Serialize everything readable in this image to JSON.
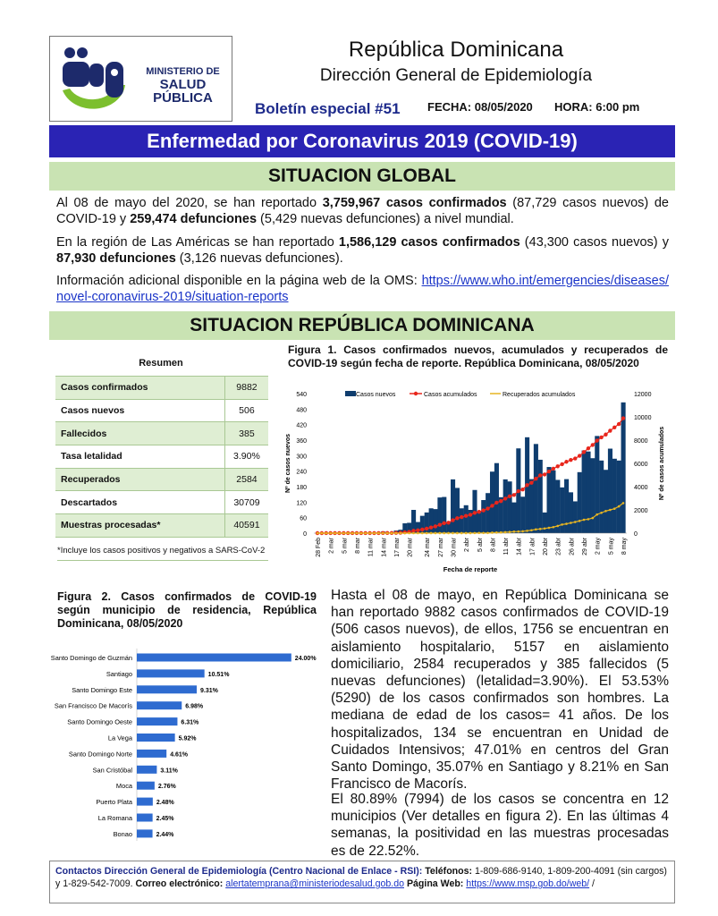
{
  "header": {
    "logo_line1": "MINISTERIO DE",
    "logo_line2": "SALUD PÚBLICA",
    "logo_mark": "msp",
    "country": "República Dominicana",
    "direction": "Dirección General de Epidemiología",
    "bulletin": "Boletín especial #51",
    "fecha": "FECHA: 08/05/2020",
    "hora": "HORA: 6:00 pm"
  },
  "banner_title": "Enfermedad por Coronavirus 2019 (COVID-19)",
  "global": {
    "heading": "SITUACION GLOBAL",
    "p1": [
      "Al 08 de mayo del 2020, se han reportado ",
      "3,759,967 casos confirmados",
      " (87,729 casos nuevos) de COVID-19 y ",
      "259,474 defunciones",
      " (5,429 nuevas defunciones) a nivel mundial."
    ],
    "p2": [
      "En la región de Las Américas se han reportado ",
      "1,586,129 casos confirmados",
      " (43,300 casos nuevos) y ",
      "87,930 defunciones",
      " (3,126 nuevas defunciones)."
    ],
    "p3_text": "Información adicional disponible en la página web de la OMS: ",
    "p3_link": "https://www.who.int/emergencies/diseases/novel-coronavirus-2019/situation-reports"
  },
  "rd": {
    "heading": "SITUACION REPÚBLICA DOMINICANA",
    "resumen": {
      "title": "Resumen",
      "rows": [
        {
          "label": "Casos confirmados",
          "value": "9882"
        },
        {
          "label": "Casos nuevos",
          "value": "506"
        },
        {
          "label": "Fallecidos",
          "value": "385"
        },
        {
          "label": "Tasa letalidad",
          "value": "3.90%"
        },
        {
          "label": "Recuperados",
          "value": "2584"
        },
        {
          "label": "Descartados",
          "value": "30709"
        },
        {
          "label": "Muestras procesadas*",
          "value": "40591"
        }
      ],
      "note": "*Incluye los casos positivos y negativos a SARS-CoV-2"
    },
    "body_p1": "Hasta el 08 de mayo, en República Dominicana se han reportado 9882 casos confirmados de COVID-19 (506 casos nuevos), de ellos, 1756 se encuentran en aislamiento hospitalario, 5157 en aislamiento domiciliario, 2584 recuperados y 385 fallecidos (5 nuevas defunciones) (letalidad=3.90%). El 53.53% (5290) de los casos confirmados son hombres. La mediana de edad de los casos= 41 años. De los hospitalizados, 134 se encuentran en Unidad de Cuidados Intensivos; 47.01% en centros del Gran Santo Domingo, 35.07% en Santiago y 8.21% en San Francisco de Macorís.",
    "body_p2": "El 80.89% (7994) de los casos se concentra en 12 municipios (Ver detalles en figura 2). En las últimas 4 semanas, la positividad en las muestras procesadas es de 22.52%."
  },
  "footer": {
    "contacts_label": "Contactos Dirección General de Epidemiología (Centro Nacional de Enlace - RSI):",
    "phones_label": "Teléfonos:",
    "phones": " 1-809-686-9140, 1-809-200-4091 (sin cargos) y 1-829-542-7009.",
    "email_label": "Correo electrónico:",
    "email": "alertatemprana@ministeriodesalud.gob.do",
    "web_label": "Página Web:",
    "web": "https://www.msp.gob.do/web/",
    "trail": " /"
  },
  "colors": {
    "bars": "#0f3d6e",
    "cumulative": "#e8261c",
    "recovered": "#e6b422",
    "fig2_bars": "#2e6bd0",
    "banner": "#2a23b4",
    "green": "#c9e3b3"
  },
  "chart_data": [
    {
      "type": "bar+line",
      "title": "Figura 1. Casos confirmados nuevos, acumulados y recuperados de COVID-19 según fecha de reporte. República Dominicana, 08/05/2020",
      "xlabel": "Fecha de reporte",
      "ylabel": "Nº de casos nuevos",
      "y2label": "Nº de casos acumulados",
      "ylim": [
        0,
        540
      ],
      "yticks": [
        0,
        60,
        120,
        180,
        240,
        300,
        360,
        420,
        480,
        540
      ],
      "y2lim": [
        0,
        12000
      ],
      "y2ticks": [
        0,
        2000,
        4000,
        6000,
        8000,
        10000,
        12000
      ],
      "legend_position": "top",
      "x_start": "28 Feb",
      "x_end": "8 may",
      "n_days": 71,
      "xtick_labels": [
        [
          "28 Feb",
          0
        ],
        [
          "2 mar",
          3
        ],
        [
          "5 mar",
          6
        ],
        [
          "8 mar",
          9
        ],
        [
          "11 mar",
          12
        ],
        [
          "14 mar",
          15
        ],
        [
          "17 mar",
          18
        ],
        [
          "20 mar",
          21
        ],
        [
          "24 mar",
          25
        ],
        [
          "27 mar",
          28
        ],
        [
          "30 mar",
          31
        ],
        [
          "2 abr",
          34
        ],
        [
          "5 abr",
          37
        ],
        [
          "8 abr",
          40
        ],
        [
          "11 abr",
          43
        ],
        [
          "14 abr",
          46
        ],
        [
          "17 abr",
          49
        ],
        [
          "20 abr",
          52
        ],
        [
          "23 abr",
          55
        ],
        [
          "26 abr",
          58
        ],
        [
          "29 abr",
          61
        ],
        [
          "2 may",
          64
        ],
        [
          "5 may",
          67
        ],
        [
          "8 may",
          70
        ]
      ],
      "series": [
        {
          "name": "Casos nuevos",
          "kind": "bar",
          "values": [
            0,
            0,
            1,
            0,
            1,
            0,
            0,
            0,
            3,
            0,
            0,
            0,
            0,
            0,
            0,
            6,
            0,
            0,
            10,
            13,
            38,
            40,
            90,
            43,
            67,
            80,
            96,
            93,
            138,
            140,
            42,
            208,
            175,
            96,
            108,
            90,
            167,
            83,
            128,
            155,
            238,
            271,
            139,
            208,
            200,
            119,
            328,
            141,
            371,
            209,
            345,
            284,
            80,
            256,
            243,
            206,
            177,
            209,
            158,
            123,
            236,
            320,
            316,
            290,
            376,
            281,
            245,
            327,
            288,
            281,
            506
          ]
        },
        {
          "name": "Casos acumulados",
          "kind": "line",
          "axis": "right",
          "values": [
            0,
            0,
            1,
            1,
            2,
            2,
            2,
            2,
            5,
            5,
            5,
            5,
            5,
            5,
            5,
            11,
            11,
            11,
            21,
            34,
            72,
            112,
            202,
            245,
            312,
            392,
            488,
            581,
            719,
            859,
            901,
            1109,
            1284,
            1380,
            1488,
            1578,
            1745,
            1828,
            1956,
            2111,
            2349,
            2620,
            2759,
            2967,
            3167,
            3286,
            3614,
            3755,
            4126,
            4335,
            4680,
            4964,
            5044,
            5300,
            5543,
            5749,
            5926,
            6135,
            6293,
            6416,
            6652,
            6972,
            7288,
            7578,
            7954,
            8235,
            8480,
            8807,
            9095,
            9376,
            9882
          ]
        },
        {
          "name": "Recuperados acumulados",
          "kind": "line",
          "axis": "right",
          "values": [
            0,
            0,
            0,
            0,
            0,
            0,
            0,
            0,
            0,
            0,
            0,
            0,
            0,
            0,
            0,
            0,
            0,
            0,
            0,
            0,
            0,
            0,
            0,
            0,
            1,
            1,
            1,
            3,
            3,
            3,
            3,
            3,
            3,
            3,
            3,
            4,
            9,
            15,
            15,
            15,
            40,
            51,
            60,
            80,
            98,
            130,
            140,
            160,
            200,
            250,
            320,
            360,
            400,
            460,
            520,
            620,
            740,
            800,
            880,
            960,
            1050,
            1150,
            1200,
            1300,
            1600,
            1750,
            1900,
            2000,
            2100,
            2300,
            2584
          ]
        }
      ]
    },
    {
      "type": "bar",
      "orientation": "horizontal",
      "title": "Figura 2. Casos confirmados de COVID-19 según municipio de residencia, República Dominicana, 08/05/2020",
      "categories": [
        "Santo Domingo de Guzmán",
        "Santiago",
        "Santo Domingo Este",
        "San Francisco De Macorís",
        "Santo Domingo Oeste",
        "La Vega",
        "Santo Domingo Norte",
        "San Cristóbal",
        "Moca",
        "Puerto Plata",
        "La Romana",
        "Bonao"
      ],
      "values": [
        24.0,
        10.51,
        9.31,
        6.98,
        6.31,
        5.92,
        4.61,
        3.11,
        2.76,
        2.48,
        2.45,
        2.44
      ],
      "labels": [
        "24.00%",
        "10.51%",
        "9.31%",
        "6.98%",
        "6.31%",
        "5.92%",
        "4.61%",
        "3.11%",
        "2.76%",
        "2.48%",
        "2.45%",
        "2.44%"
      ],
      "unit": "%"
    }
  ]
}
